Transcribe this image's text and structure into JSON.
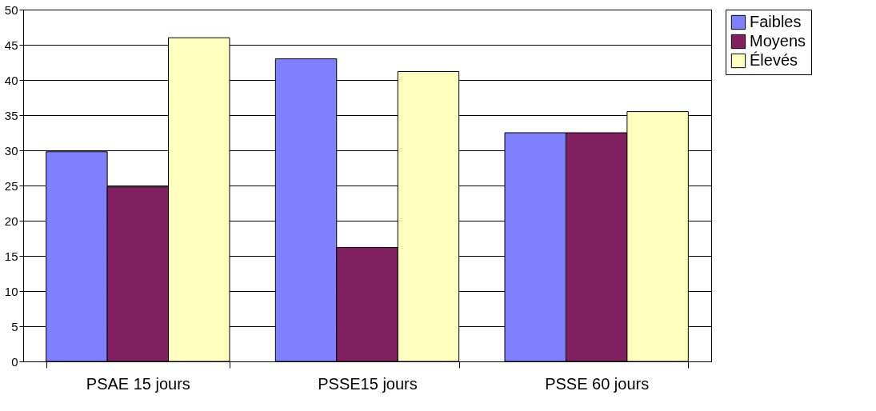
{
  "chart_data": {
    "type": "bar",
    "categories": [
      "PSAE 15 jours",
      "PSSE15 jours",
      "PSSE 60 jours"
    ],
    "series": [
      {
        "name": "Faibles",
        "color": "#8080ff",
        "values": [
          29.8,
          43,
          32.5
        ]
      },
      {
        "name": "Moyens",
        "color": "#802060",
        "values": [
          24.8,
          16.2,
          32.5
        ]
      },
      {
        "name": "Élevés",
        "color": "#ffffc0",
        "values": [
          46,
          41.2,
          35.5
        ]
      }
    ],
    "ylim": [
      0,
      50
    ],
    "yticks": [
      0,
      5,
      10,
      15,
      20,
      25,
      30,
      35,
      40,
      45,
      50
    ],
    "grid": "y",
    "legend": "right"
  }
}
